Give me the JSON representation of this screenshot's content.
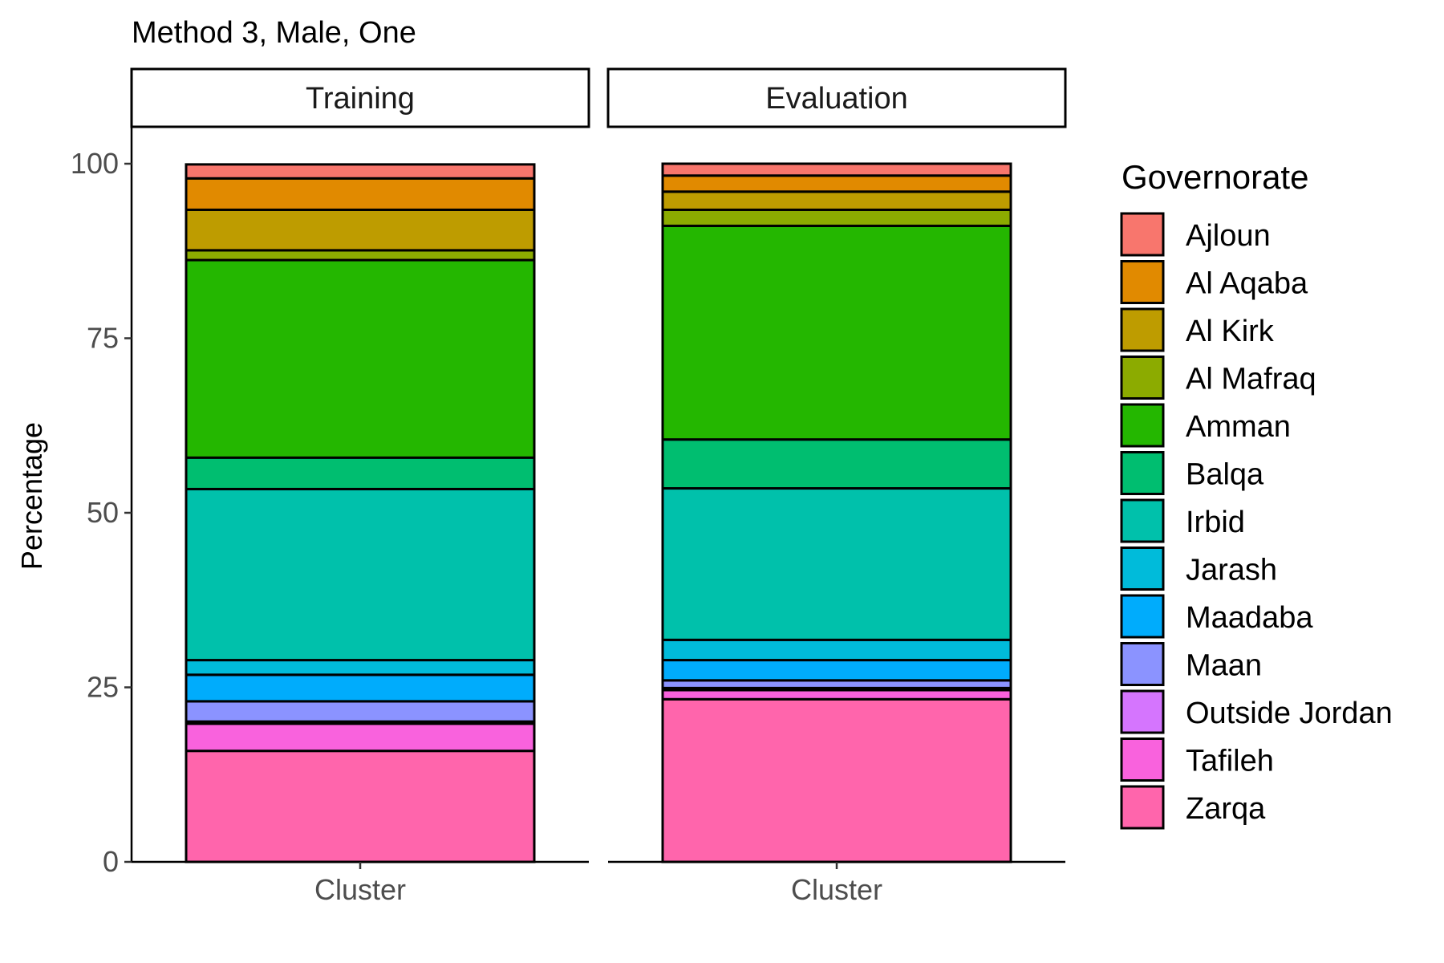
{
  "chart_data": {
    "type": "bar",
    "stacked": true,
    "title": "Method 3, Male, One",
    "xlabel": "",
    "ylabel": "Percentage",
    "ylim": [
      0,
      100
    ],
    "yticks": [
      0,
      25,
      50,
      75,
      100
    ],
    "grid": false,
    "legend_title": "Governorate",
    "legend_position": "right",
    "categories": [
      "Ajloun",
      "Al Aqaba",
      "Al Kirk",
      "Al Mafraq",
      "Amman",
      "Balqa",
      "Irbid",
      "Jarash",
      "Maadaba",
      "Maan",
      "Outside Jordan",
      "Tafileh",
      "Zarqa"
    ],
    "colors": [
      "#F8766D",
      "#E18A00",
      "#BE9C00",
      "#8CAB00",
      "#24B700",
      "#00BE70",
      "#00C1AB",
      "#00BBDA",
      "#00ACFC",
      "#8B93FF",
      "#D575FE",
      "#F962DD",
      "#FF65AC"
    ],
    "panels": [
      {
        "name": "Training",
        "x_category": "Cluster",
        "values": [
          2.0,
          4.5,
          5.8,
          1.4,
          28.3,
          4.5,
          24.5,
          2.1,
          3.8,
          2.9,
          0.3,
          3.9,
          15.9
        ]
      },
      {
        "name": "Evaluation",
        "x_category": "Cluster",
        "values": [
          1.7,
          2.3,
          2.6,
          2.3,
          30.6,
          7.0,
          21.7,
          2.9,
          2.9,
          1.1,
          0.3,
          1.3,
          23.3
        ]
      }
    ]
  }
}
